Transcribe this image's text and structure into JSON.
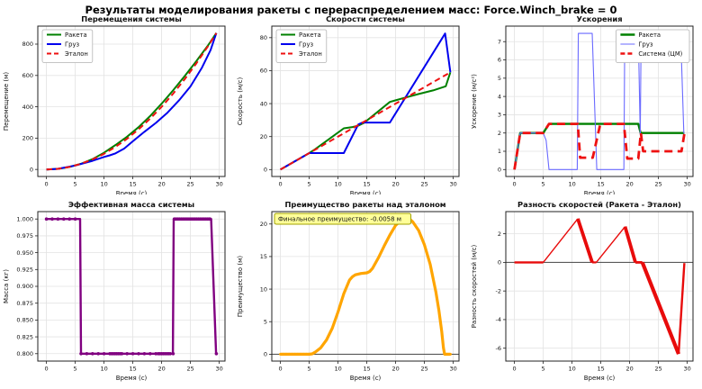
{
  "suptitle": "Результаты моделирования ракеты с перераспределением масс: Force.Winch_brake = 0",
  "chart_data": [
    {
      "id": "displacements",
      "type": "line",
      "title": "Перемещения системы",
      "xlabel": "Время (с)",
      "ylabel": "Перемещение (м)",
      "xlim": [
        -1.5,
        31
      ],
      "ylim": [
        -45,
        915
      ],
      "xticks": [
        0,
        5,
        10,
        15,
        20,
        25,
        30
      ],
      "ytick_vals": [
        0,
        200,
        400,
        600,
        800
      ],
      "ytick_labels": [
        "0",
        "200",
        "400",
        "600",
        "800"
      ],
      "grid": true,
      "legend": {
        "pos": "upper-left"
      },
      "series": [
        {
          "id": "rocket",
          "name": "Ракета",
          "color": "#008000",
          "lw": 2,
          "dash": false,
          "x": [
            0,
            2,
            4,
            6,
            8,
            10,
            12,
            14,
            16,
            18,
            20,
            22,
            24,
            26,
            28,
            29.5
          ],
          "y": [
            0,
            4,
            16,
            36,
            66,
            107,
            156,
            209,
            270,
            341,
            420,
            505,
            596,
            690,
            789,
            871
          ]
        },
        {
          "id": "cargo",
          "name": "Груз",
          "color": "#0000ee",
          "lw": 2,
          "dash": false,
          "x": [
            0,
            2,
            5,
            8,
            10,
            11,
            12,
            13.5,
            15,
            17,
            19,
            21,
            23,
            25,
            27,
            28.5,
            29.5
          ],
          "y": [
            0,
            4,
            25,
            55,
            80,
            90,
            103,
            133,
            180,
            240,
            297,
            362,
            440,
            530,
            650,
            762,
            871
          ]
        },
        {
          "id": "etalon",
          "name": "Эталон",
          "color": "#ee1111",
          "lw": 2,
          "dash": true,
          "x": [
            0,
            2,
            4,
            6,
            8,
            10,
            12,
            14,
            16,
            18,
            20,
            22,
            24,
            26,
            28,
            29.5
          ],
          "y": [
            0,
            4,
            16,
            36,
            64,
            100,
            144,
            196,
            256,
            324,
            400,
            484,
            576,
            676,
            784,
            870
          ]
        }
      ]
    },
    {
      "id": "velocities",
      "type": "line",
      "title": "Скорости системы",
      "xlabel": "Время (с)",
      "ylabel": "Скорость (м/с)",
      "xlim": [
        -1.5,
        31
      ],
      "ylim": [
        -4.2,
        87
      ],
      "xticks": [
        0,
        5,
        10,
        15,
        20,
        25,
        30
      ],
      "ytick_vals": [
        0,
        20,
        40,
        60,
        80
      ],
      "ytick_labels": [
        "0",
        "20",
        "40",
        "60",
        "80"
      ],
      "grid": true,
      "legend": {
        "pos": "upper-left"
      },
      "series": [
        {
          "id": "rocket",
          "name": "Ракета",
          "color": "#008000",
          "lw": 2,
          "dash": false,
          "x": [
            0,
            1,
            5,
            6,
            11,
            12.5,
            13.5,
            14.5,
            19,
            20,
            21.5,
            24,
            26.5,
            28.7,
            29.5
          ],
          "y": [
            0,
            2,
            10,
            12.3,
            25,
            25.8,
            26.6,
            28.3,
            41,
            42,
            43.5,
            45.8,
            48,
            50.5,
            59
          ]
        },
        {
          "id": "cargo",
          "name": "Груз",
          "color": "#0000ee",
          "lw": 2,
          "dash": false,
          "x": [
            0,
            1,
            5,
            11,
            13.5,
            14.2,
            19,
            28.6,
            29.5
          ],
          "y": [
            0,
            2,
            10,
            10,
            27.3,
            28.5,
            28.5,
            82.5,
            59
          ]
        },
        {
          "id": "etalon",
          "name": "Эталон",
          "color": "#ee1111",
          "lw": 2,
          "dash": true,
          "x": [
            0,
            29.5
          ],
          "y": [
            0,
            59
          ]
        }
      ]
    },
    {
      "id": "accelerations",
      "type": "line",
      "title": "Ускорения",
      "xlabel": "Время (с)",
      "ylabel": "Ускорение (м/с²)",
      "xlim": [
        -1.5,
        31
      ],
      "ylim": [
        -0.38,
        7.85
      ],
      "xticks": [
        0,
        5,
        10,
        15,
        20,
        25,
        30
      ],
      "ytick_vals": [
        0,
        1,
        2,
        3,
        4,
        5,
        6,
        7
      ],
      "ytick_labels": [
        "0",
        "1",
        "2",
        "3",
        "4",
        "5",
        "6",
        "7"
      ],
      "grid": true,
      "legend": {
        "pos": "upper-right"
      },
      "series": [
        {
          "id": "rocket",
          "name": "Ракета",
          "color": "#008000",
          "lw": 2.4,
          "dash": false,
          "x": [
            0,
            1,
            5,
            6,
            21.5,
            21.9,
            29.5
          ],
          "y": [
            0,
            2,
            2,
            2.5,
            2.5,
            2,
            2
          ]
        },
        {
          "id": "cargo",
          "name": "Груз",
          "color": "#6a6aff",
          "lw": 1.1,
          "dash": false,
          "x": [
            0,
            1,
            5,
            5.5,
            6,
            10.9,
            11.1,
            13.5,
            14.3,
            19,
            19.15,
            21.5,
            21.85,
            21.95,
            22.05,
            29,
            29.4,
            29.5
          ],
          "y": [
            0,
            2,
            2,
            1.6,
            0,
            0,
            7.45,
            7.45,
            0,
            0,
            7.45,
            7.45,
            1.9,
            5.9,
            6,
            6,
            2,
            2
          ]
        },
        {
          "id": "system-cm",
          "name": "Система (ЦМ)",
          "color": "#ee1111",
          "lw": 2.8,
          "dash": true,
          "x": [
            0,
            1,
            5,
            6,
            11,
            11.4,
            13.6,
            14.9,
            19,
            19.6,
            21.5,
            21.95,
            22.35,
            29,
            29.5
          ],
          "y": [
            0,
            2,
            2,
            2.5,
            2.5,
            0.65,
            0.65,
            2.5,
            2.5,
            0.6,
            0.6,
            2,
            1,
            1,
            1.95
          ]
        }
      ]
    },
    {
      "id": "mass",
      "type": "line",
      "title": "Эффективная масса системы",
      "xlabel": "Время (с)",
      "ylabel": "Масса (кг)",
      "xlim": [
        -1.5,
        31
      ],
      "ylim": [
        0.789,
        1.011
      ],
      "xticks": [
        0,
        5,
        10,
        15,
        20,
        25,
        30
      ],
      "ytick_vals": [
        0.8,
        0.825,
        0.85,
        0.875,
        0.9,
        0.925,
        0.95,
        0.975,
        1.0
      ],
      "ytick_labels": [
        "0.800",
        "0.825",
        "0.850",
        "0.875",
        "0.900",
        "0.925",
        "0.950",
        "0.975",
        "1.000"
      ],
      "grid": true,
      "series": [
        {
          "id": "mass",
          "color": "#800080",
          "lw": 2.4,
          "dash": false,
          "x": [
            0,
            5.85,
            6,
            21.95,
            22.1,
            28.6,
            29.45,
            29.5
          ],
          "y": [
            1,
            1,
            0.8,
            0.8,
            1,
            1,
            0.8,
            0.8
          ],
          "marker_r": 1.8,
          "markers": [
            [
              0,
              1
            ],
            [
              1,
              1
            ],
            [
              2,
              1
            ],
            [
              3,
              1
            ],
            [
              4,
              1
            ],
            [
              5,
              1
            ],
            [
              6,
              0.8
            ],
            [
              7,
              0.8
            ],
            [
              8,
              0.8
            ],
            [
              9,
              0.8
            ],
            [
              10,
              0.8
            ],
            [
              11,
              0.8
            ],
            [
              11.3,
              0.8
            ],
            [
              11.6,
              0.8
            ],
            [
              11.9,
              0.8
            ],
            [
              12.2,
              0.8
            ],
            [
              12.5,
              0.8
            ],
            [
              12.8,
              0.8
            ],
            [
              13.1,
              0.8
            ],
            [
              14,
              0.8
            ],
            [
              15,
              0.8
            ],
            [
              16,
              0.8
            ],
            [
              17,
              0.8
            ],
            [
              18,
              0.8
            ],
            [
              19,
              0.8
            ],
            [
              19.4,
              0.8
            ],
            [
              19.7,
              0.8
            ],
            [
              20,
              0.8
            ],
            [
              20.3,
              0.8
            ],
            [
              20.6,
              0.8
            ],
            [
              20.9,
              0.8
            ],
            [
              21.2,
              0.8
            ],
            [
              21.5,
              0.8
            ],
            [
              22,
              0.8
            ],
            [
              22.2,
              1
            ],
            [
              22.5,
              1
            ],
            [
              22.8,
              1
            ],
            [
              23.1,
              1
            ],
            [
              23.4,
              1
            ],
            [
              23.7,
              1
            ],
            [
              24,
              1
            ],
            [
              24.3,
              1
            ],
            [
              24.6,
              1
            ],
            [
              24.9,
              1
            ],
            [
              25.2,
              1
            ],
            [
              25.5,
              1
            ],
            [
              25.8,
              1
            ],
            [
              26.1,
              1
            ],
            [
              26.4,
              1
            ],
            [
              26.7,
              1
            ],
            [
              27,
              1
            ],
            [
              27.3,
              1
            ],
            [
              27.6,
              1
            ],
            [
              27.9,
              1
            ],
            [
              28.2,
              1
            ],
            [
              28.4,
              1
            ],
            [
              29.5,
              0.8
            ]
          ]
        }
      ]
    },
    {
      "id": "advantage",
      "type": "line",
      "title": "Преимущество ракеты над эталоном",
      "xlabel": "Время (с)",
      "ylabel": "Преимущество (м)",
      "xlim": [
        -1.5,
        31
      ],
      "ylim": [
        -1.05,
        21.9
      ],
      "xticks": [
        0,
        5,
        10,
        15,
        20,
        25,
        30
      ],
      "ytick_vals": [
        0,
        5,
        10,
        15,
        20
      ],
      "ytick_labels": [
        "0",
        "5",
        "10",
        "15",
        "20"
      ],
      "grid": true,
      "hline": 0,
      "annotation": {
        "text": "Финальное преимущество: -0.0058 м",
        "bg": "#ffff99",
        "border": "#a0a000"
      },
      "series": [
        {
          "id": "advantage",
          "color": "#ffa500",
          "lw": 3.2,
          "dash": false,
          "x": [
            0,
            1,
            2,
            3,
            4,
            5,
            5.5,
            6,
            7,
            8,
            9,
            10,
            11,
            12,
            12.5,
            13,
            14,
            15,
            15.5,
            16,
            17,
            18,
            19,
            20,
            21,
            21.5,
            22,
            22.5,
            23,
            24,
            25,
            26,
            27,
            27.5,
            28,
            28.3,
            28.5,
            29,
            29.5
          ],
          "y": [
            0,
            0,
            0,
            0,
            0,
            0,
            0.05,
            0.3,
            1,
            2.2,
            4,
            6.5,
            9.3,
            11.4,
            11.9,
            12.2,
            12.4,
            12.5,
            12.7,
            13.2,
            14.8,
            16.6,
            18.3,
            19.8,
            20.6,
            20.75,
            20.8,
            20.7,
            20.3,
            19,
            16.8,
            13.8,
            9.5,
            6.8,
            3.5,
            1,
            0,
            0,
            0
          ],
          "marker_r": 1.5,
          "markers": [
            [
              0,
              0
            ],
            [
              0.5,
              0
            ],
            [
              1,
              0
            ],
            [
              1.5,
              0
            ],
            [
              2,
              0
            ],
            [
              2.5,
              0
            ],
            [
              3,
              0
            ],
            [
              3.5,
              0
            ],
            [
              4,
              0
            ],
            [
              4.5,
              0
            ],
            [
              5,
              0
            ],
            [
              29,
              0
            ],
            [
              29.5,
              0
            ]
          ]
        }
      ]
    },
    {
      "id": "velocity_difference",
      "type": "line",
      "title": "Разность скоростей (Ракета - Эталон)",
      "xlabel": "Время (с)",
      "ylabel": "Разность скоростей (м/с)",
      "xlim": [
        -1.5,
        31
      ],
      "ylim": [
        -6.9,
        3.55
      ],
      "xticks": [
        0,
        5,
        10,
        15,
        20,
        25,
        30
      ],
      "ytick_vals": [
        -6,
        -4,
        -2,
        0,
        2
      ],
      "ytick_labels": [
        "-6",
        "-4",
        "-2",
        "0",
        "2"
      ],
      "grid": true,
      "hline": 0,
      "series": [
        {
          "id": "vdiff-seg-1",
          "color": "#e80b0b",
          "lw": 2.4,
          "dash": false,
          "x": [
            0,
            5
          ],
          "y": [
            0,
            0
          ]
        },
        {
          "id": "vdiff-seg-2",
          "color": "#e80b0b",
          "lw": 1.4,
          "dash": false,
          "x": [
            5,
            11
          ],
          "y": [
            0,
            3.05
          ]
        },
        {
          "id": "vdiff-seg-3",
          "color": "#e80b0b",
          "lw": 3.8,
          "dash": false,
          "x": [
            11,
            13.5
          ],
          "y": [
            3.05,
            0
          ]
        },
        {
          "id": "vdiff-seg-4",
          "color": "#e80b0b",
          "lw": 2.2,
          "dash": false,
          "x": [
            13.5,
            14.2
          ],
          "y": [
            0,
            0
          ]
        },
        {
          "id": "vdiff-seg-5",
          "color": "#e80b0b",
          "lw": 1.4,
          "dash": false,
          "x": [
            14.2,
            19.2
          ],
          "y": [
            0,
            2.5
          ]
        },
        {
          "id": "vdiff-seg-6",
          "color": "#e80b0b",
          "lw": 3.8,
          "dash": false,
          "x": [
            19.2,
            21
          ],
          "y": [
            2.5,
            0
          ]
        },
        {
          "id": "vdiff-seg-7",
          "color": "#e80b0b",
          "lw": 2.8,
          "dash": false,
          "x": [
            21,
            22.2
          ],
          "y": [
            0,
            0
          ]
        },
        {
          "id": "vdiff-seg-8",
          "color": "#e80b0b",
          "lw": 4.2,
          "dash": false,
          "x": [
            22.2,
            28.5
          ],
          "y": [
            0,
            -6.4
          ]
        },
        {
          "id": "vdiff-seg-9",
          "color": "#e80b0b",
          "lw": 2.4,
          "dash": false,
          "x": [
            28.5,
            29.5
          ],
          "y": [
            -6.4,
            -0.05
          ]
        }
      ]
    }
  ]
}
